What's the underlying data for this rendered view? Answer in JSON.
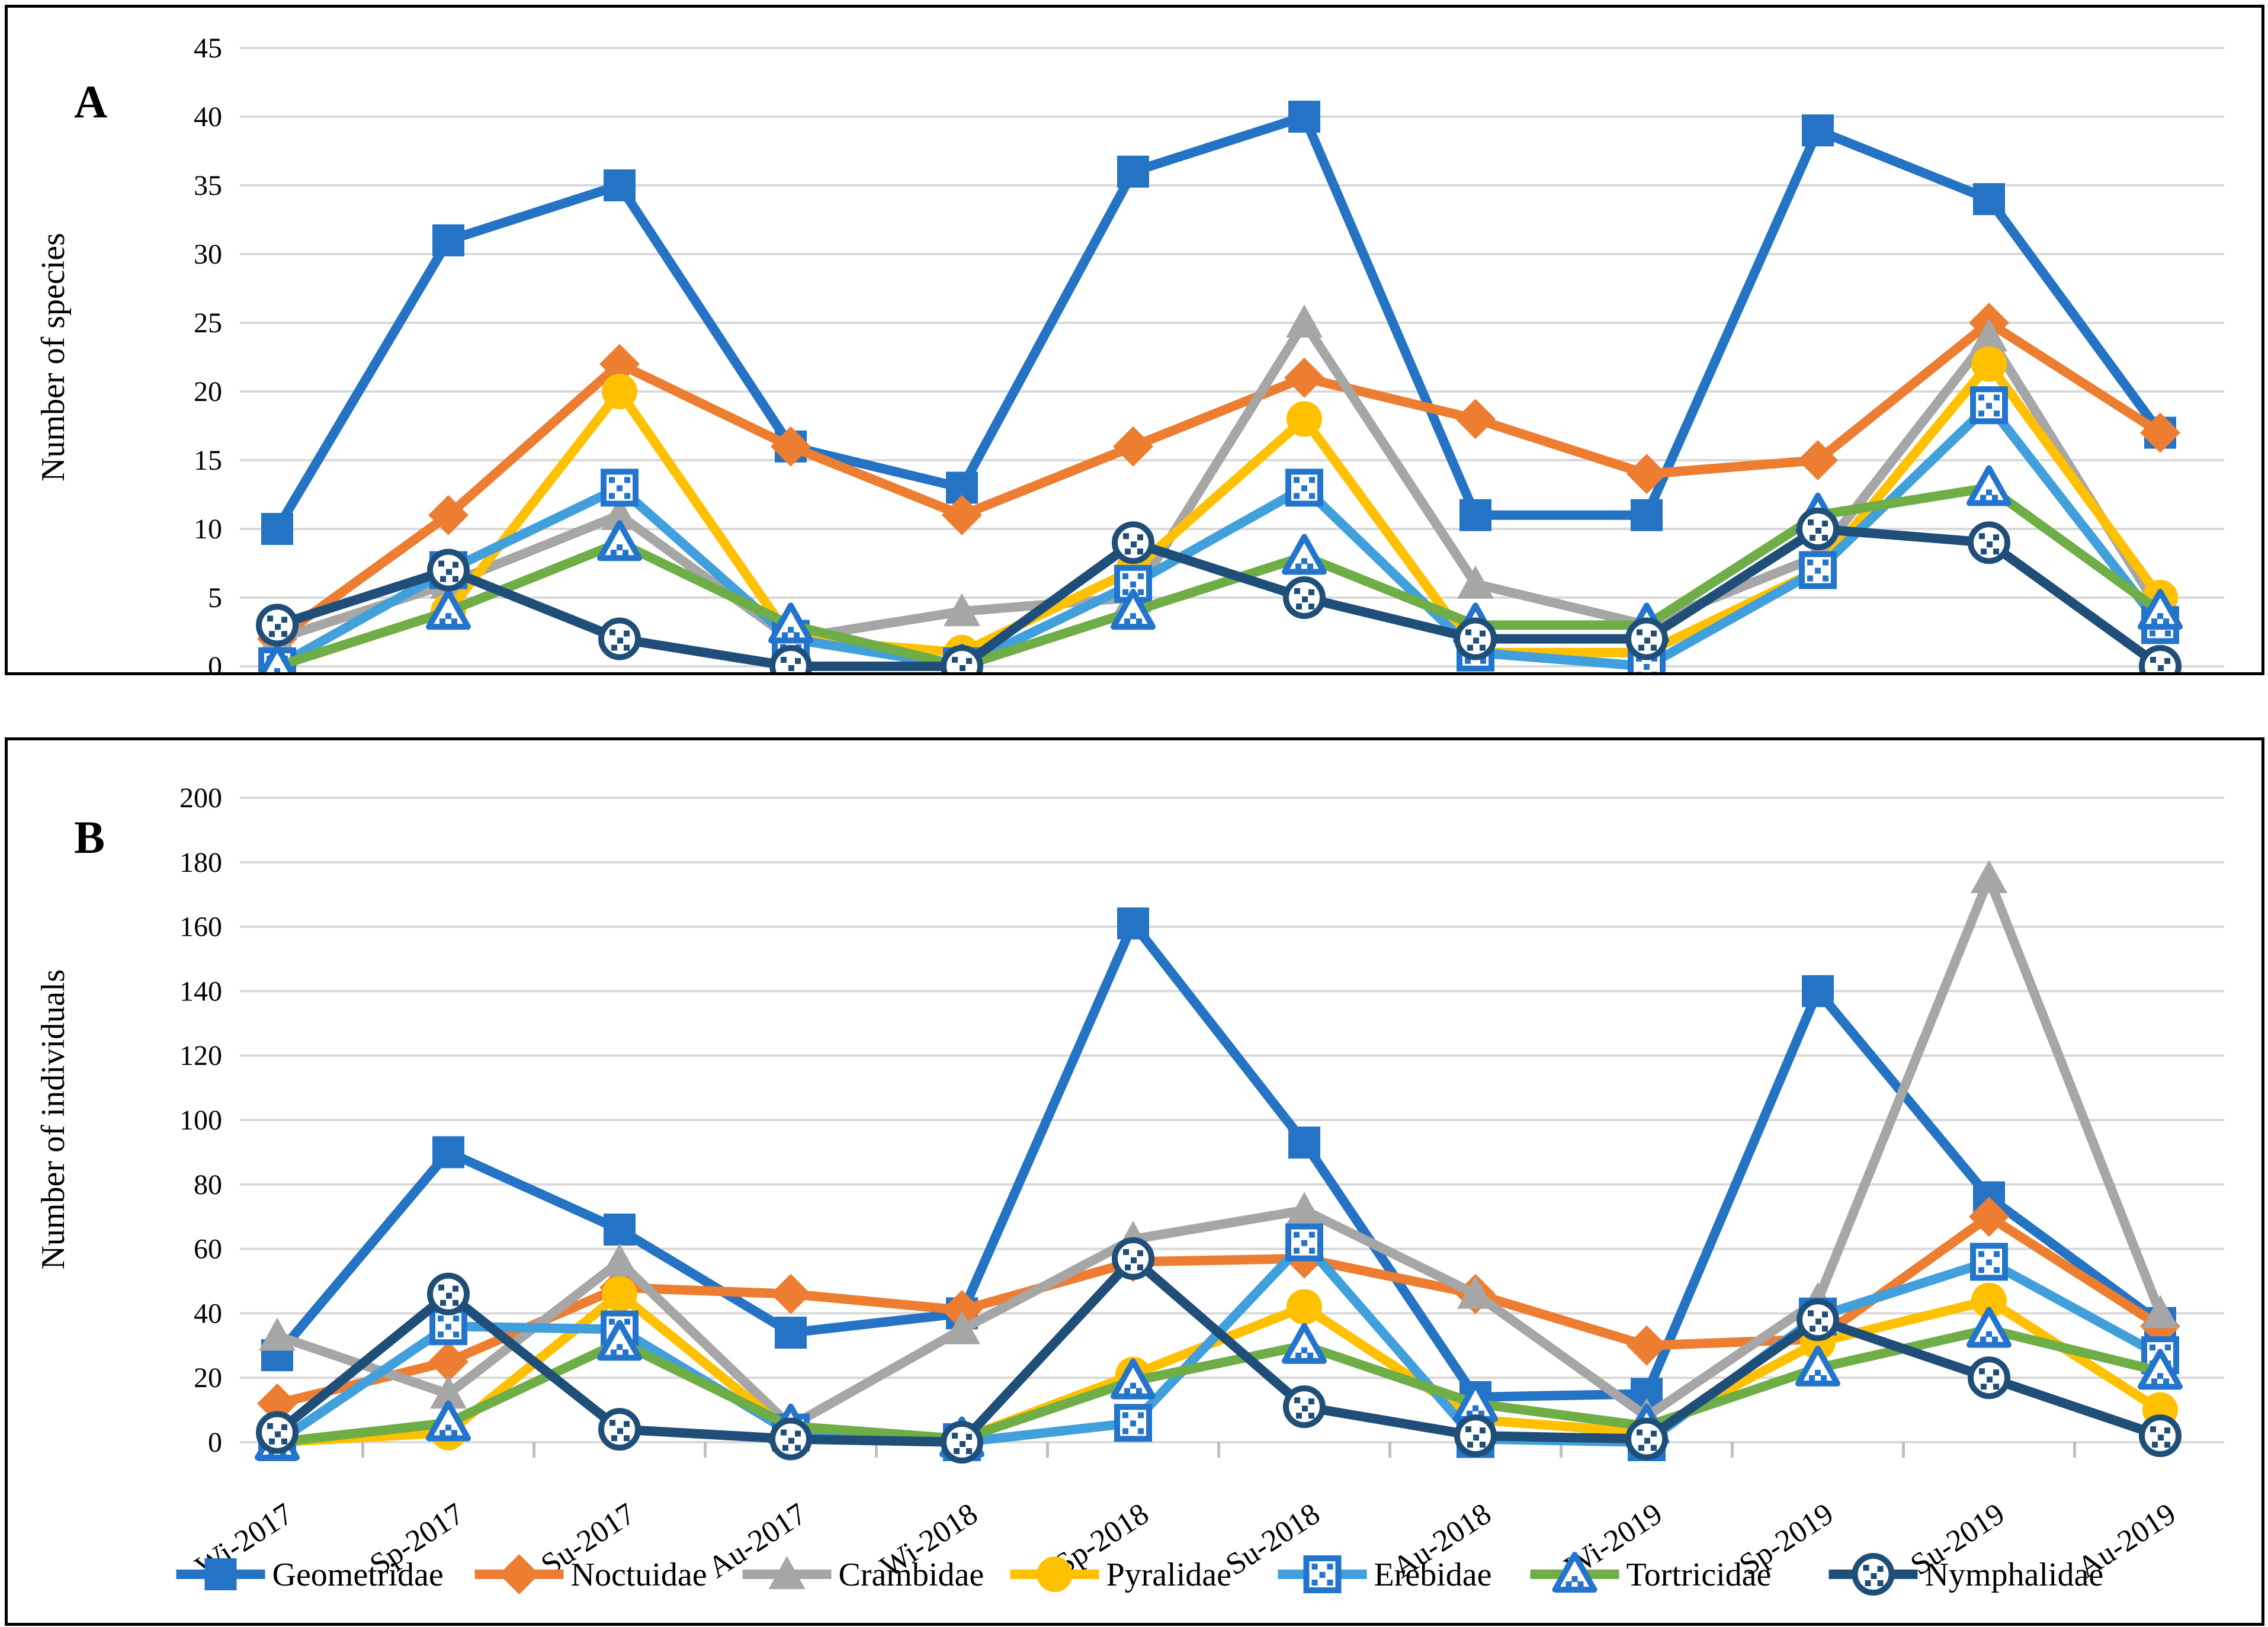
{
  "figure": {
    "panel_a_letter": "A",
    "panel_b_letter": "B",
    "panel_a_ylabel": "Number of species",
    "panel_b_ylabel": "Number of individuals"
  },
  "colors": {
    "geometridae": "#2473C4",
    "noctuidae": "#ED7D31",
    "crambidae": "#A6A6A6",
    "pyralidae": "#FFC000",
    "erebidae": "#41A0DC",
    "tortricidae": "#6FAD47",
    "nymphalidae": "#1F4E79",
    "open_marker_stroke_blue": "#2374CC",
    "open_marker_stroke_navy": "#1F4E79",
    "gridline": "#D9D9D9",
    "tick": "#BFBFBF"
  },
  "legend": {
    "entries": [
      "Geometridae",
      "Noctuidae",
      "Crambidae",
      "Pyralidae",
      "Erebidae",
      "Tortricidae",
      "Nymphalidae"
    ]
  },
  "chart_data": [
    {
      "type": "line",
      "panel": "A",
      "ylabel": "Number of species",
      "ylim": [
        0,
        45
      ],
      "ytick_step": 5,
      "ytick_labels": [
        "0",
        "5",
        "10",
        "15",
        "20",
        "25",
        "30",
        "35",
        "40",
        "45"
      ],
      "grid": true,
      "legend_position": "none",
      "categories": [
        "Wi-2017",
        "Sp-2017",
        "Su-2017",
        "Au-2017",
        "Wi-2018",
        "Sp-2018",
        "Su-2018",
        "Au-2018",
        "Wi-2019",
        "Sp-2019",
        "Su-2019",
        "Au-2019"
      ],
      "series": [
        {
          "name": "Geometridae",
          "marker": "square",
          "color": "#2473C4",
          "values": [
            10,
            31,
            35,
            16,
            13,
            36,
            40,
            11,
            11,
            39,
            34,
            17
          ]
        },
        {
          "name": "Noctuidae",
          "marker": "diamond",
          "color": "#ED7D31",
          "values": [
            2,
            11,
            22,
            16,
            11,
            16,
            21,
            18,
            14,
            15,
            25,
            17
          ]
        },
        {
          "name": "Crambidae",
          "marker": "triangle",
          "color": "#A6A6A6",
          "values": [
            2,
            6,
            11,
            2,
            4,
            5,
            25,
            6,
            3,
            8,
            24,
            4
          ]
        },
        {
          "name": "Pyralidae",
          "marker": "circle",
          "color": "#FFC000",
          "values": [
            0,
            4,
            20,
            2,
            1,
            7,
            18,
            1,
            1,
            7,
            22,
            5
          ]
        },
        {
          "name": "Erebidae",
          "marker": "osquare",
          "color": "#41A0DC",
          "values": [
            0,
            7,
            13,
            2,
            0,
            6,
            13,
            1,
            0,
            7,
            19,
            3
          ]
        },
        {
          "name": "Tortricidae",
          "marker": "otriangle",
          "color": "#6FAD47",
          "values": [
            0,
            4,
            9,
            3,
            0,
            4,
            8,
            3,
            3,
            11,
            13,
            4
          ]
        },
        {
          "name": "Nymphalidae",
          "marker": "ocircle",
          "color": "#1F4E79",
          "values": [
            3,
            7,
            2,
            0,
            0,
            9,
            5,
            2,
            2,
            10,
            9,
            0
          ]
        }
      ]
    },
    {
      "type": "line",
      "panel": "B",
      "ylabel": "Number of individuals",
      "ylim": [
        0,
        200
      ],
      "ytick_step": 20,
      "ytick_labels": [
        "0",
        "20",
        "40",
        "60",
        "80",
        "100",
        "120",
        "140",
        "160",
        "180",
        "200"
      ],
      "grid": true,
      "legend_position": "bottom",
      "categories": [
        "Wi-2017",
        "Sp-2017",
        "Su-2017",
        "Au-2017",
        "Wi-2018",
        "Sp-2018",
        "Su-2018",
        "Au-2018",
        "Wi-2019",
        "Sp-2019",
        "Su-2019",
        "Au-2019"
      ],
      "series": [
        {
          "name": "Geometridae",
          "marker": "square",
          "color": "#2473C4",
          "values": [
            27,
            90,
            66,
            34,
            40,
            161,
            93,
            14,
            15,
            140,
            76,
            37
          ]
        },
        {
          "name": "Noctuidae",
          "marker": "diamond",
          "color": "#ED7D31",
          "values": [
            12,
            25,
            48,
            46,
            41,
            56,
            57,
            46,
            30,
            32,
            70,
            36
          ]
        },
        {
          "name": "Crambidae",
          "marker": "triangle",
          "color": "#A6A6A6",
          "values": [
            33,
            15,
            56,
            5,
            35,
            63,
            72,
            46,
            8,
            44,
            175,
            40
          ]
        },
        {
          "name": "Pyralidae",
          "marker": "circle",
          "color": "#FFC000",
          "values": [
            0,
            3,
            46,
            3,
            1,
            21,
            42,
            7,
            3,
            31,
            44,
            10
          ]
        },
        {
          "name": "Erebidae",
          "marker": "osquare",
          "color": "#41A0DC",
          "values": [
            0,
            36,
            35,
            3,
            0,
            6,
            62,
            1,
            0,
            39,
            56,
            27
          ]
        },
        {
          "name": "Tortricidae",
          "marker": "otriangle",
          "color": "#6FAD47",
          "values": [
            0,
            6,
            31,
            5,
            1,
            19,
            30,
            12,
            5,
            23,
            35,
            22
          ]
        },
        {
          "name": "Nymphalidae",
          "marker": "ocircle",
          "color": "#1F4E79",
          "values": [
            3,
            46,
            4,
            1,
            0,
            57,
            11,
            2,
            1,
            38,
            20,
            2
          ]
        }
      ]
    }
  ]
}
